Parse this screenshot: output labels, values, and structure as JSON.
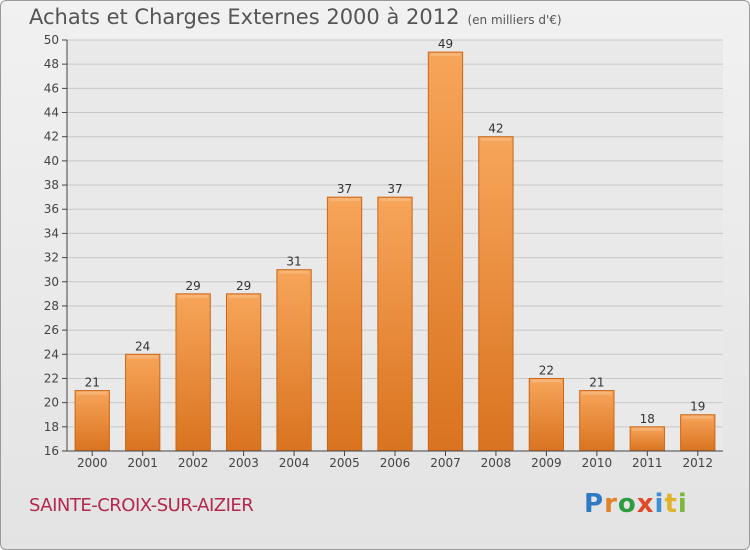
{
  "header": {
    "title": "Achats et Charges Externes 2000 à 2012",
    "unit": "(en milliers d'€)"
  },
  "footer": {
    "commune": "SAINTE-CROIX-SUR-AIZIER",
    "logo_letters": [
      "P",
      "r",
      "o",
      "x",
      "i",
      "t",
      "i"
    ],
    "logo_colors": [
      "#2e7bc4",
      "#e0832a",
      "#2e9d3f",
      "#e04a2a",
      "#3a8fd6",
      "#e0b42a",
      "#7bb83a"
    ]
  },
  "colors": {
    "bar_top": "#f7a55a",
    "bar_bottom": "#d9731f",
    "bar_edge": "#c9671a",
    "grid": "#c8c8c8",
    "axis": "#444444",
    "plot_bg": "#e9e9e9"
  },
  "chart_data": {
    "type": "bar",
    "title": "Achats et Charges Externes 2000 à 2012",
    "subtitle": "(en milliers d'€)",
    "xlabel": "",
    "ylabel": "",
    "categories": [
      "2000",
      "2001",
      "2002",
      "2003",
      "2004",
      "2005",
      "2006",
      "2007",
      "2008",
      "2009",
      "2010",
      "2011",
      "2012"
    ],
    "values": [
      21,
      24,
      29,
      29,
      31,
      37,
      37,
      49,
      42,
      22,
      21,
      18,
      19
    ],
    "ylim": [
      16,
      50
    ],
    "yticks": [
      16,
      18,
      20,
      22,
      24,
      26,
      28,
      30,
      32,
      34,
      36,
      38,
      40,
      42,
      44,
      46,
      48,
      50
    ],
    "grid": true,
    "legend": "none"
  }
}
